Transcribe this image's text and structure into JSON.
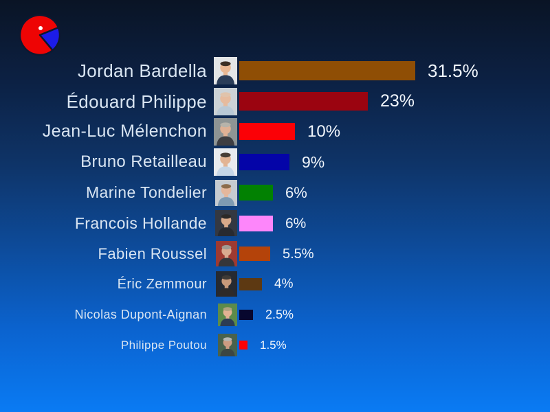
{
  "slide": {
    "background_top_color": "#0a1425",
    "background_bottom_color": "#0a7bf4",
    "name_text_color": "#d9e5f2",
    "percent_text_color": "#f0f5fb"
  },
  "logo": {
    "description": "pie-chart-pacman-logo",
    "main_color": "#ee0404",
    "wedge_color": "#1c1ce8",
    "outline_color": "#0d1830",
    "dot_color": "#ffffff"
  },
  "chart_data": {
    "type": "bar",
    "orientation": "horizontal",
    "title": "",
    "xlabel": "",
    "ylabel": "",
    "xlim": [
      0,
      35
    ],
    "grid": false,
    "legend": "none",
    "categories": [
      "Jordan Bardella",
      "Édouard Philippe",
      "Jean-Luc Mélenchon",
      "Bruno Retailleau",
      "Marine Tondelier",
      "Francois Hollande",
      "Fabien Roussel",
      "Éric Zemmour",
      "Nicolas Dupont-Aignan",
      "Philippe Poutou"
    ],
    "values": [
      31.5,
      23,
      10,
      9,
      6,
      6,
      5.5,
      4,
      2.5,
      1.5
    ],
    "value_labels": [
      "31.5%",
      "23%",
      "10%",
      "9%",
      "6%",
      "6%",
      "5.5%",
      "4%",
      "2.5%",
      "1.5%"
    ],
    "bar_colors": [
      "#8f4e05",
      "#9b0410",
      "#fb0106",
      "#0404a8",
      "#028102",
      "#fd86fa",
      "#b4430a",
      "#5d3912",
      "#07072e",
      "#fb0208"
    ]
  },
  "candidates": [
    {
      "name": "Jordan Bardella",
      "value": 31.5,
      "label": "31.5%",
      "bar_color": "#8f4e05",
      "photo": {
        "bg": "#e3e5e6",
        "skin": "#e9b893",
        "hair": "#3b2f24",
        "shirt": "#2b3d58"
      }
    },
    {
      "name": "Édouard Philippe",
      "value": 23,
      "label": "23%",
      "bar_color": "#9b0410",
      "photo": {
        "bg": "#ccd2d6",
        "skin": "#e6bb9e",
        "hair": "#e0c3ab",
        "shirt": "#b9c9d6"
      }
    },
    {
      "name": "Jean-Luc Mélenchon",
      "value": 10,
      "label": "10%",
      "bar_color": "#fb0106",
      "photo": {
        "bg": "#8e9494",
        "skin": "#dfb195",
        "hair": "#b7b3aa",
        "shirt": "#3e3e42"
      }
    },
    {
      "name": "Bruno Retailleau",
      "value": 9,
      "label": "9%",
      "bar_color": "#0404a8",
      "photo": {
        "bg": "#e8ebee",
        "skin": "#e2b494",
        "hair": "#463e36",
        "shirt": "#c5d6e7"
      }
    },
    {
      "name": "Marine Tondelier",
      "value": 6,
      "label": "6%",
      "bar_color": "#028102",
      "photo": {
        "bg": "#c6cbd1",
        "skin": "#e4b79c",
        "hair": "#8c6c4c",
        "shirt": "#7e9ab2"
      }
    },
    {
      "name": "Francois Hollande",
      "value": 6,
      "label": "6%",
      "bar_color": "#fd86fa",
      "photo": {
        "bg": "#343841",
        "skin": "#d9aa8a",
        "hair": "#2c2a28",
        "shirt": "#282a30"
      }
    },
    {
      "name": "Fabien Roussel",
      "value": 5.5,
      "label": "5.5%",
      "bar_color": "#b4430a",
      "photo": {
        "bg": "#9e3a32",
        "skin": "#d9aa90",
        "hair": "#9e9a92",
        "shirt": "#36363a"
      }
    },
    {
      "name": "Éric Zemmour",
      "value": 4,
      "label": "4%",
      "bar_color": "#5d3912",
      "photo": {
        "bg": "#262a31",
        "skin": "#c99a7a",
        "hair": "#3e3a36",
        "shirt": "#2e2a28"
      }
    },
    {
      "name": "Nicolas Dupont-Aignan",
      "value": 2.5,
      "label": "2.5%",
      "bar_color": "#07072e",
      "photo": {
        "bg": "#5d8b4a",
        "skin": "#e2b292",
        "hair": "#b0a27e",
        "shirt": "#2c3c54"
      }
    },
    {
      "name": "Philippe Poutou",
      "value": 1.5,
      "label": "1.5%",
      "bar_color": "#fb0208",
      "photo": {
        "bg": "#49624c",
        "skin": "#cd9c82",
        "hair": "#b6b6b2",
        "shirt": "#3c4642"
      }
    }
  ]
}
